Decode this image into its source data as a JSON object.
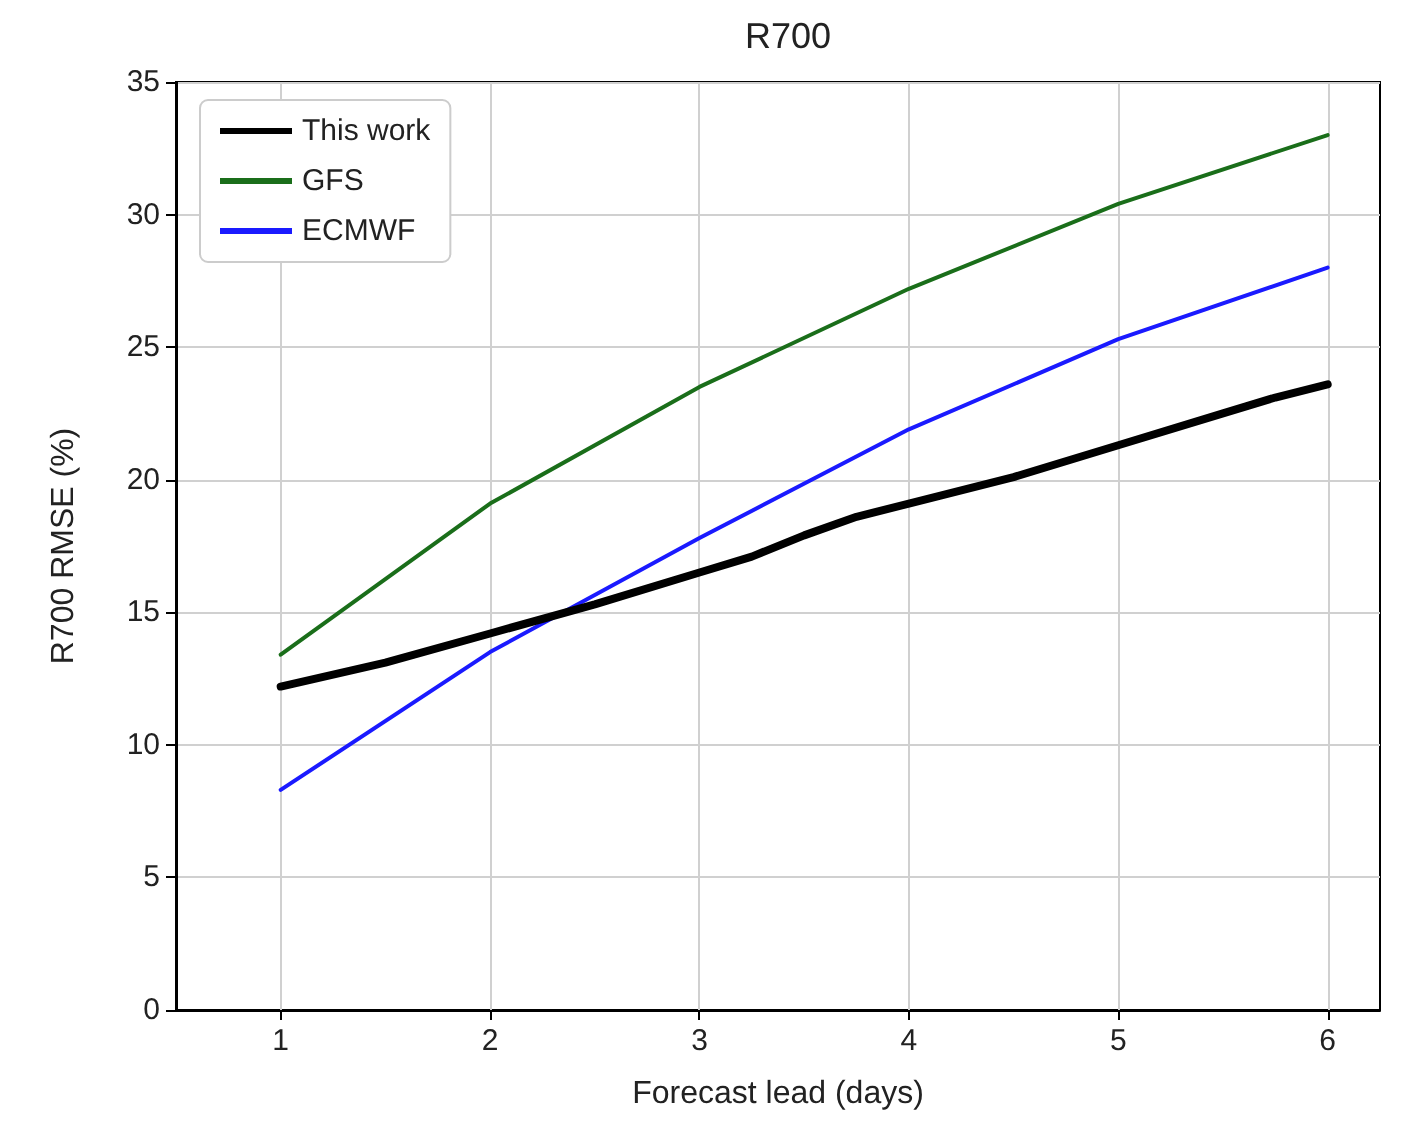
{
  "chart_data": {
    "type": "line",
    "title": "R700",
    "xlabel": "Forecast lead (days)",
    "ylabel": "R700 RMSE (%)",
    "series": [
      {
        "name": "This work",
        "color": "#000000",
        "x": [
          1,
          1.5,
          2,
          2.5,
          3,
          3.25,
          3.5,
          3.75,
          4,
          4.5,
          5,
          5.5,
          5.75,
          6
        ],
        "values": [
          12.2,
          13.1,
          14.2,
          15.3,
          16.5,
          17.1,
          17.9,
          18.6,
          19.1,
          20.1,
          21.3,
          22.5,
          23.1,
          23.6
        ]
      },
      {
        "name": "GFS",
        "color": "#1a6e1a",
        "x": [
          1,
          2,
          3,
          4,
          5,
          6
        ],
        "values": [
          13.4,
          19.1,
          23.5,
          27.2,
          30.4,
          33.0
        ]
      },
      {
        "name": "ECMWF",
        "color": "#1a1aff",
        "x": [
          1,
          2,
          3,
          4,
          5,
          6
        ],
        "values": [
          8.3,
          13.5,
          17.8,
          21.9,
          25.3,
          28.0
        ]
      }
    ],
    "xlim": [
      0.5,
      6.25
    ],
    "xticks": [
      1,
      2,
      3,
      4,
      5,
      6
    ],
    "ylim": [
      0,
      35
    ],
    "yticks": [
      0,
      5,
      10,
      15,
      20,
      25,
      30,
      35
    ],
    "grid": true,
    "legend": "top left",
    "marker": "none",
    "line_style": "solid"
  }
}
